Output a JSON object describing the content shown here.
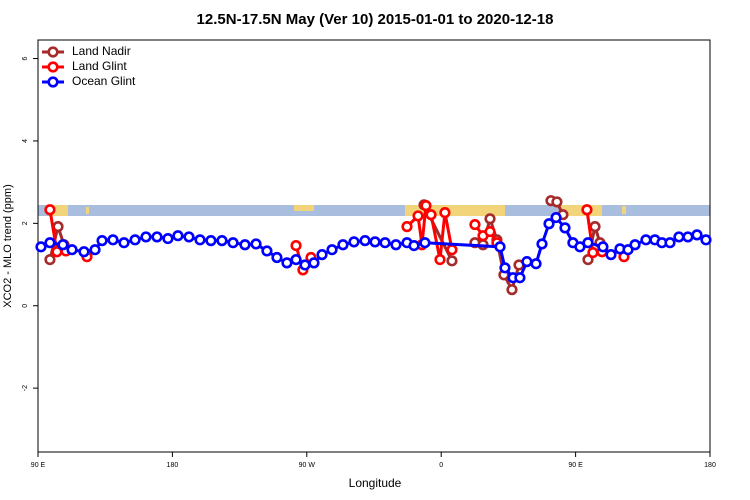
{
  "chart_data": {
    "type": "line",
    "title": "12.5N-17.5N May (Ver 10)   2015-01-01 to 2020-12-18",
    "x_label": "Longitude",
    "y_label": "XCO2 - MLO trend (ppm)",
    "xlim": [
      90,
      540
    ],
    "ylim": [
      -3.55,
      6.45
    ],
    "xticks": [
      {
        "value": 90,
        "label": "90 E"
      },
      {
        "value": 180,
        "label": "180"
      },
      {
        "value": 270,
        "label": "90 W"
      },
      {
        "value": 360,
        "label": "0"
      },
      {
        "value": 450,
        "label": "90 E"
      },
      {
        "value": 540,
        "label": "180"
      }
    ],
    "yticks": [
      -2,
      0,
      2,
      4,
      6
    ],
    "legend_position": "top-left",
    "series": [
      {
        "name": "Land Nadir",
        "color": "#a52a2a",
        "x": [
          98.0,
          103.4,
          107.4,
          null,
          348.5,
          367.2,
          null,
          382.6,
          388.0,
          392.7,
          397.3,
          402.0,
          407.4,
          412.1,
          null,
          433.5,
          437.5,
          441.5,
          null,
          458.3,
          463.0,
          466.3
        ],
        "values": [
          1.12,
          1.92,
          1.48,
          null,
          2.45,
          1.09,
          null,
          1.53,
          1.48,
          2.11,
          1.6,
          0.75,
          0.39,
          0.99,
          null,
          2.55,
          2.52,
          2.21,
          null,
          1.12,
          1.92,
          1.53
        ]
      },
      {
        "name": "Land Glint",
        "color": "#ff0000",
        "x": [
          98.0,
          102.7,
          108.7,
          null,
          122.8,
          null,
          262.8,
          267.4,
          272.8,
          null,
          337.1,
          344.5,
          347.1,
          349.8,
          353.2,
          359.2,
          362.5,
          367.2,
          null,
          382.6,
          388.0,
          392.7,
          397.3,
          null,
          457.6,
          461.6,
          467.7,
          null,
          482.4
        ],
        "values": [
          2.33,
          1.31,
          1.33,
          null,
          1.19,
          null,
          1.46,
          0.87,
          1.17,
          null,
          1.92,
          2.18,
          1.48,
          2.43,
          2.21,
          1.12,
          2.26,
          1.36,
          null,
          1.97,
          1.7,
          1.8,
          1.53,
          null,
          2.33,
          1.29,
          1.31,
          null,
          1.19
        ]
      },
      {
        "name": "Ocean Glint",
        "color": "#0000ff",
        "x": [
          92.0,
          98.0,
          106.7,
          112.8,
          120.8,
          128.2,
          132.9,
          140.2,
          147.6,
          155.0,
          162.3,
          169.7,
          177.0,
          183.7,
          191.1,
          198.5,
          205.8,
          213.2,
          220.6,
          228.6,
          236.0,
          243.3,
          250.0,
          256.7,
          262.8,
          268.8,
          274.8,
          280.2,
          286.9,
          294.2,
          301.6,
          309.0,
          315.7,
          322.4,
          329.7,
          337.1,
          341.8,
          349.1,
          399.4,
          402.7,
          408.1,
          412.7,
          417.4,
          423.5,
          427.5,
          432.2,
          436.9,
          442.9,
          448.2,
          452.9,
          458.3,
          468.3,
          473.7,
          479.7,
          485.1,
          489.8,
          497.1,
          503.1,
          507.8,
          513.2,
          519.2,
          525.2,
          531.3,
          537.3
        ],
        "values": [
          1.43,
          1.53,
          1.48,
          1.36,
          1.31,
          1.36,
          1.58,
          1.6,
          1.53,
          1.6,
          1.67,
          1.67,
          1.63,
          1.7,
          1.67,
          1.6,
          1.58,
          1.58,
          1.53,
          1.48,
          1.5,
          1.33,
          1.17,
          1.04,
          1.12,
          0.99,
          1.04,
          1.24,
          1.36,
          1.48,
          1.55,
          1.58,
          1.55,
          1.53,
          1.48,
          1.53,
          1.46,
          1.53,
          1.43,
          0.92,
          0.68,
          0.68,
          1.07,
          1.02,
          1.5,
          1.99,
          2.14,
          1.89,
          1.53,
          1.43,
          1.53,
          1.43,
          1.24,
          1.38,
          1.36,
          1.48,
          1.6,
          1.6,
          1.53,
          1.53,
          1.67,
          1.67,
          1.72,
          1.6
        ]
      }
    ]
  }
}
